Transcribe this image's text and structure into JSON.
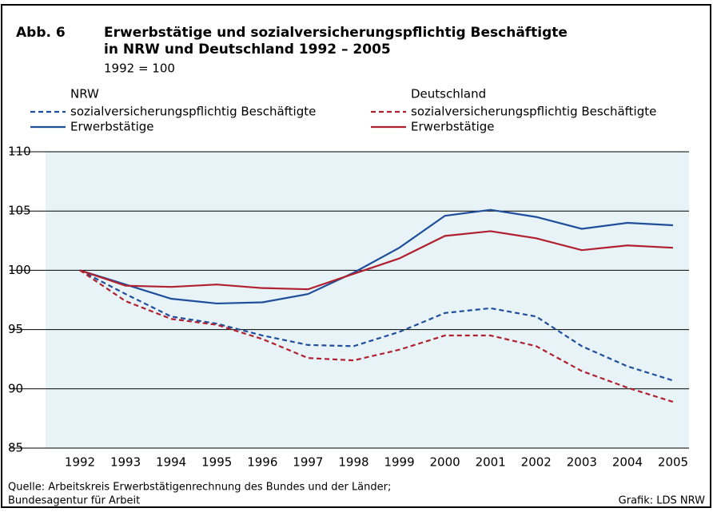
{
  "chart_data": {
    "type": "line",
    "label": "Abb. 6",
    "title": [
      "Erwerbstätige und sozialversicherungspflichtig Beschäftigte",
      "in NRW und Deutschland 1992 – 2005"
    ],
    "subtitle": "1992 = 100",
    "legend_groups": [
      "NRW",
      "Deutschland"
    ],
    "categories": [
      "1992",
      "1993",
      "1994",
      "1995",
      "1996",
      "1997",
      "1998",
      "1999",
      "2000",
      "2001",
      "2002",
      "2003",
      "2004",
      "2005"
    ],
    "series": [
      {
        "name": "sozialversicherungspflichtig Beschäftigte",
        "group": 0,
        "dashed": true,
        "color": "#1f4e9a",
        "values": [
          100,
          98.0,
          96.1,
          95.5,
          94.5,
          93.7,
          93.6,
          94.8,
          96.4,
          96.8,
          96.1,
          93.6,
          91.9,
          90.7
        ]
      },
      {
        "name": "Erwerbstätige",
        "group": 0,
        "dashed": false,
        "color": "#1f4e9a",
        "values": [
          100,
          98.8,
          97.6,
          97.2,
          97.3,
          98.0,
          99.8,
          101.9,
          104.6,
          105.1,
          104.5,
          103.5,
          104.0,
          103.8
        ]
      },
      {
        "name": "sozialversicherungspflichtig Beschäftigte",
        "group": 1,
        "dashed": true,
        "color": "#b0202e",
        "values": [
          100,
          97.4,
          95.9,
          95.4,
          94.2,
          92.6,
          92.4,
          93.3,
          94.5,
          94.5,
          93.6,
          91.5,
          90.1,
          88.9
        ]
      },
      {
        "name": "Erwerbstätige",
        "group": 1,
        "dashed": false,
        "color": "#b0202e",
        "values": [
          100,
          98.7,
          98.6,
          98.8,
          98.5,
          98.4,
          99.7,
          101.0,
          102.9,
          103.3,
          102.7,
          101.7,
          102.1,
          101.9
        ]
      }
    ],
    "ylim": [
      85,
      110
    ],
    "yticks": [
      85,
      90,
      95,
      100,
      105,
      110
    ],
    "grid": true,
    "source": [
      "Quelle: Arbeitskreis Erwerbstätigenrechnung des Bundes und der Länder;",
      "Bundesagentur für Arbeit"
    ],
    "credit": "Grafik: LDS NRW"
  }
}
